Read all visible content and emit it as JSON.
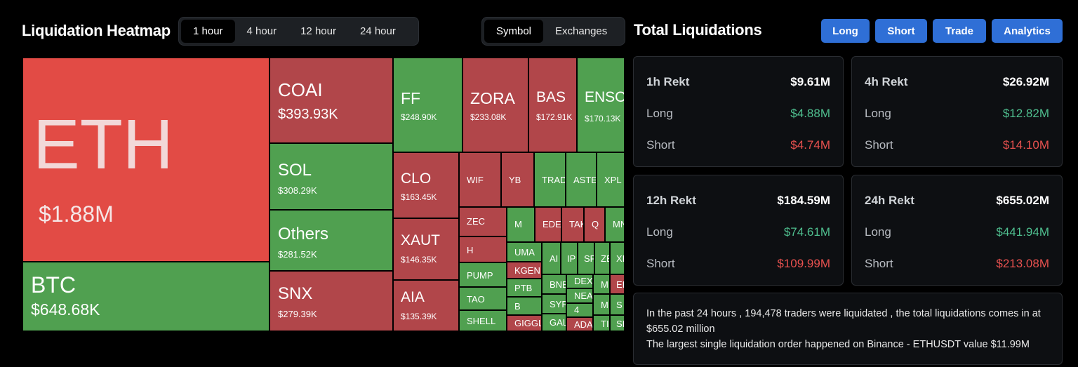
{
  "heatmap": {
    "title": "Liquidation Heatmap",
    "timeframes": [
      "1 hour",
      "4 hour",
      "12 hour",
      "24 hour"
    ],
    "selected_timeframe": "1 hour",
    "views": [
      "Symbol",
      "Exchanges"
    ],
    "selected_view": "Symbol",
    "tiles": [
      {
        "symbol": "ETH",
        "value": "$1.88M",
        "color": "bigred"
      },
      {
        "symbol": "BTC",
        "value": "$648.68K",
        "color": "green"
      },
      {
        "symbol": "COAI",
        "value": "$393.93K",
        "color": "red"
      },
      {
        "symbol": "SOL",
        "value": "$308.29K",
        "color": "green"
      },
      {
        "symbol": "Others",
        "value": "$281.52K",
        "color": "green"
      },
      {
        "symbol": "SNX",
        "value": "$279.39K",
        "color": "red"
      },
      {
        "symbol": "FF",
        "value": "$248.90K",
        "color": "green"
      },
      {
        "symbol": "ZORA",
        "value": "$233.08K",
        "color": "red"
      },
      {
        "symbol": "BAS",
        "value": "$172.91K",
        "color": "red"
      },
      {
        "symbol": "ENSO",
        "value": "$170.13K",
        "color": "green"
      },
      {
        "symbol": "CLO",
        "value": "$163.45K",
        "color": "red"
      },
      {
        "symbol": "XAUT",
        "value": "$146.35K",
        "color": "red"
      },
      {
        "symbol": "AIA",
        "value": "$135.39K",
        "color": "red"
      },
      {
        "symbol": "WIF",
        "value": "",
        "color": "red"
      },
      {
        "symbol": "YB",
        "value": "",
        "color": "red"
      },
      {
        "symbol": "TRAD",
        "value": "",
        "color": "green"
      },
      {
        "symbol": "ASTE",
        "value": "",
        "color": "green"
      },
      {
        "symbol": "XPL",
        "value": "",
        "color": "green"
      },
      {
        "symbol": "ZEC",
        "value": "",
        "color": "red"
      },
      {
        "symbol": "H",
        "value": "",
        "color": "red"
      },
      {
        "symbol": "PUMP",
        "value": "",
        "color": "green"
      },
      {
        "symbol": "TAO",
        "value": "",
        "color": "green"
      },
      {
        "symbol": "SHELL",
        "value": "",
        "color": "green"
      },
      {
        "symbol": "M",
        "value": "",
        "color": "green"
      },
      {
        "symbol": "EDE",
        "value": "",
        "color": "red"
      },
      {
        "symbol": "TAK",
        "value": "",
        "color": "red"
      },
      {
        "symbol": "Q",
        "value": "",
        "color": "red"
      },
      {
        "symbol": "MN",
        "value": "",
        "color": "green"
      },
      {
        "symbol": "UMA",
        "value": "",
        "color": "green"
      },
      {
        "symbol": "KGEN",
        "value": "",
        "color": "red"
      },
      {
        "symbol": "PTB",
        "value": "",
        "color": "green"
      },
      {
        "symbol": "B",
        "value": "",
        "color": "green"
      },
      {
        "symbol": "GIGGL",
        "value": "",
        "color": "red"
      },
      {
        "symbol": "AI",
        "value": "",
        "color": "green"
      },
      {
        "symbol": "IP",
        "value": "",
        "color": "green"
      },
      {
        "symbol": "SP",
        "value": "",
        "color": "green"
      },
      {
        "symbol": "ZE",
        "value": "",
        "color": "green"
      },
      {
        "symbol": "XI",
        "value": "",
        "color": "green"
      },
      {
        "symbol": "BNB",
        "value": "",
        "color": "green"
      },
      {
        "symbol": "DEXE",
        "value": "",
        "color": "green"
      },
      {
        "symbol": "M",
        "value": "",
        "color": "green"
      },
      {
        "symbol": "EI",
        "value": "",
        "color": "red"
      },
      {
        "symbol": "NEA",
        "value": "",
        "color": "green"
      },
      {
        "symbol": "SYR",
        "value": "",
        "color": "green"
      },
      {
        "symbol": "MI",
        "value": "",
        "color": "green"
      },
      {
        "symbol": "S",
        "value": "",
        "color": "green"
      },
      {
        "symbol": "4",
        "value": "",
        "color": "green"
      },
      {
        "symbol": "GAL",
        "value": "",
        "color": "green"
      },
      {
        "symbol": "ADA",
        "value": "",
        "color": "red"
      },
      {
        "symbol": "TI",
        "value": "",
        "color": "green"
      },
      {
        "symbol": "SI",
        "value": "",
        "color": "green"
      }
    ]
  },
  "totals": {
    "title": "Total Liquidations",
    "buttons": [
      "Long",
      "Short",
      "Trade",
      "Analytics"
    ],
    "cards": [
      {
        "label": "1h Rekt",
        "total": "$9.61M",
        "long_label": "Long",
        "long": "$4.88M",
        "short_label": "Short",
        "short": "$4.74M"
      },
      {
        "label": "4h Rekt",
        "total": "$26.92M",
        "long_label": "Long",
        "long": "$12.82M",
        "short_label": "Short",
        "short": "$14.10M"
      },
      {
        "label": "12h Rekt",
        "total": "$184.59M",
        "long_label": "Long",
        "long": "$74.61M",
        "short_label": "Short",
        "short": "$109.99M"
      },
      {
        "label": "24h Rekt",
        "total": "$655.02M",
        "long_label": "Long",
        "long": "$441.94M",
        "short_label": "Short",
        "short": "$213.08M"
      }
    ],
    "summary_line1": "In the past 24 hours , 194,478 traders were liquidated , the total liquidations comes in at $655.02 million",
    "summary_line2": "The largest single liquidation order happened on Binance - ETHUSDT value $11.99M"
  },
  "colors": {
    "red_tile": "#b1464a",
    "eth_red": "#e24b45",
    "green_tile": "#50a050",
    "button_blue": "#2f6fd6",
    "long_green": "#4fbf8f",
    "short_red": "#e8514f"
  }
}
